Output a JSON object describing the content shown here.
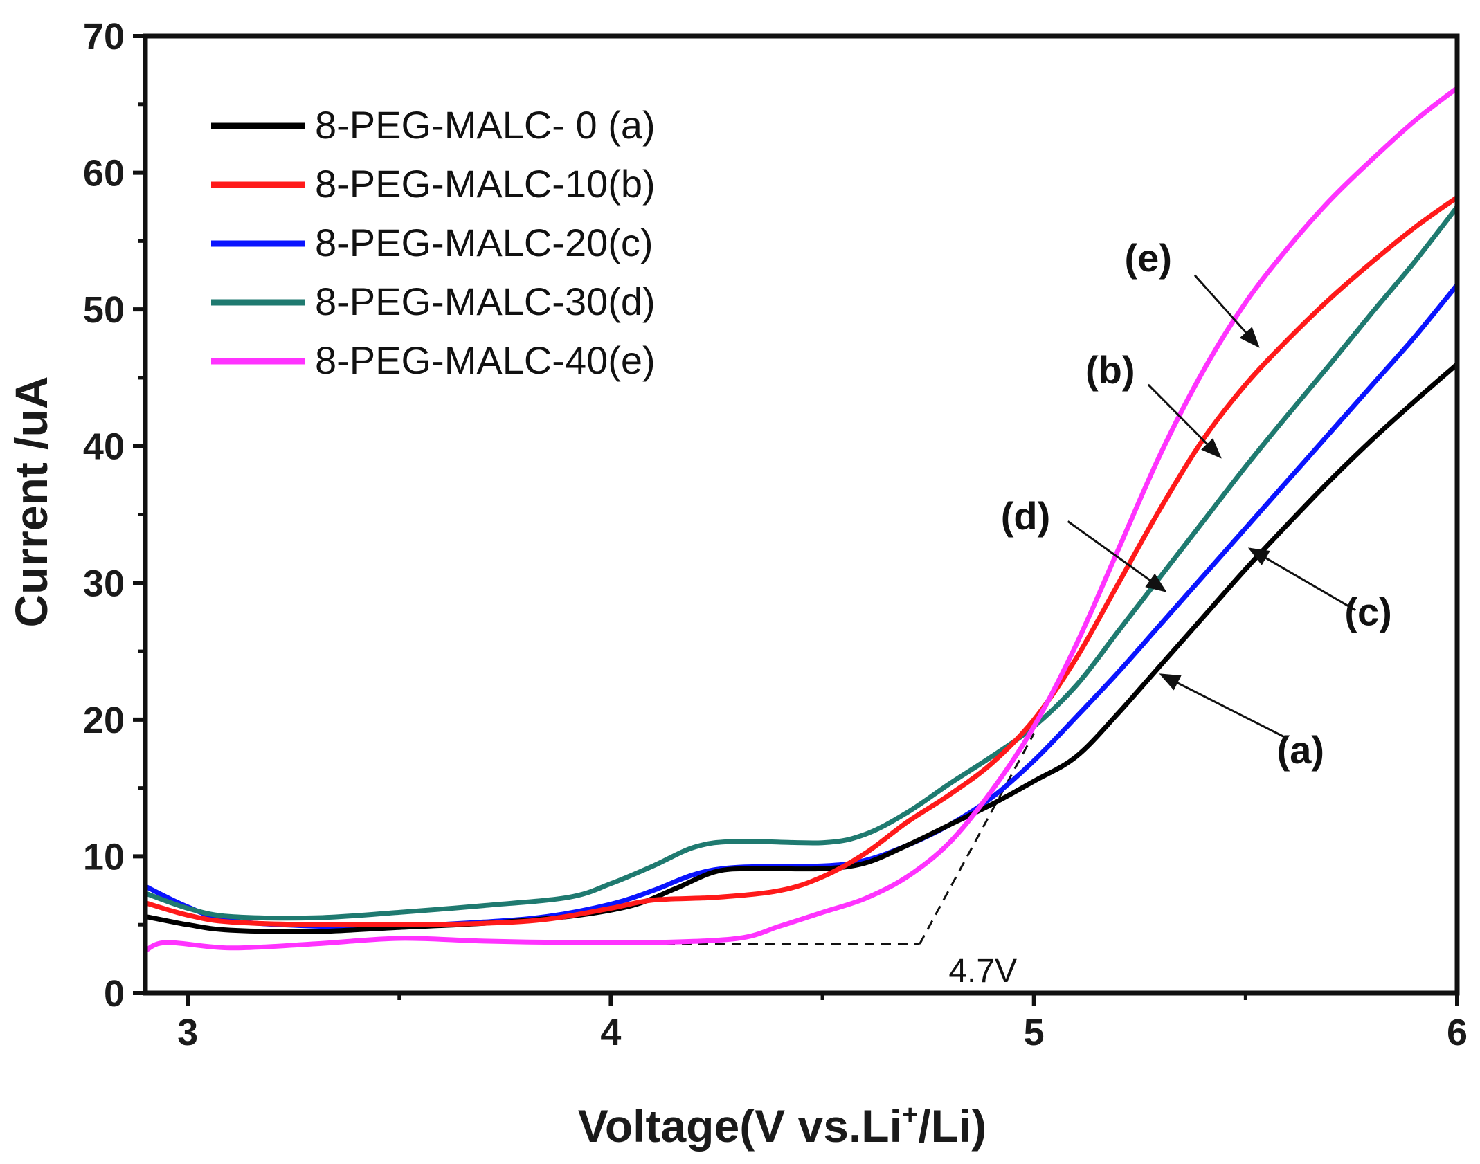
{
  "chart_data": {
    "type": "line",
    "title": "",
    "xlabel_main": "Voltage(V vs.Li",
    "xlabel_sup": "+",
    "xlabel_end": "/Li)",
    "ylabel": "Current /uA",
    "xlim": [
      2.9,
      6.0
    ],
    "ylim": [
      0,
      70
    ],
    "xticks": [
      3,
      4,
      5,
      6
    ],
    "yticks": [
      0,
      10,
      20,
      30,
      40,
      50,
      60,
      70
    ],
    "legend_position": "top-left",
    "series": [
      {
        "name": "8-PEG-MALC- 0 (a)",
        "tag": "(a)",
        "color": "#000000",
        "points": [
          [
            2.9,
            5.6
          ],
          [
            3.0,
            5.0
          ],
          [
            3.1,
            4.6
          ],
          [
            3.3,
            4.5
          ],
          [
            3.5,
            4.8
          ],
          [
            3.7,
            5.1
          ],
          [
            3.9,
            5.6
          ],
          [
            4.05,
            6.4
          ],
          [
            4.15,
            7.6
          ],
          [
            4.25,
            8.9
          ],
          [
            4.35,
            9.1
          ],
          [
            4.5,
            9.1
          ],
          [
            4.6,
            9.5
          ],
          [
            4.7,
            10.8
          ],
          [
            4.8,
            12.3
          ],
          [
            4.9,
            13.8
          ],
          [
            5.0,
            15.5
          ],
          [
            5.1,
            17.3
          ],
          [
            5.2,
            20.5
          ],
          [
            5.3,
            24.0
          ],
          [
            5.4,
            27.5
          ],
          [
            5.5,
            31.0
          ],
          [
            5.6,
            34.3
          ],
          [
            5.7,
            37.5
          ],
          [
            5.8,
            40.5
          ],
          [
            5.9,
            43.3
          ],
          [
            6.0,
            46.0
          ]
        ]
      },
      {
        "name": "8-PEG-MALC-10(b)",
        "tag": "(b)",
        "color": "#ff1a1a",
        "points": [
          [
            2.9,
            6.6
          ],
          [
            3.0,
            5.7
          ],
          [
            3.1,
            5.2
          ],
          [
            3.3,
            5.0
          ],
          [
            3.5,
            5.0
          ],
          [
            3.7,
            5.1
          ],
          [
            3.85,
            5.4
          ],
          [
            4.0,
            6.2
          ],
          [
            4.1,
            6.8
          ],
          [
            4.25,
            7.0
          ],
          [
            4.4,
            7.5
          ],
          [
            4.5,
            8.5
          ],
          [
            4.6,
            10.2
          ],
          [
            4.7,
            12.5
          ],
          [
            4.8,
            14.5
          ],
          [
            4.9,
            16.8
          ],
          [
            5.0,
            20.0
          ],
          [
            5.1,
            24.5
          ],
          [
            5.2,
            30.0
          ],
          [
            5.3,
            35.5
          ],
          [
            5.4,
            40.5
          ],
          [
            5.5,
            44.5
          ],
          [
            5.6,
            47.8
          ],
          [
            5.7,
            50.8
          ],
          [
            5.8,
            53.5
          ],
          [
            5.9,
            56.0
          ],
          [
            6.0,
            58.2
          ]
        ]
      },
      {
        "name": "8-PEG-MALC-20(c)",
        "tag": "(c)",
        "color": "#0a14ff",
        "points": [
          [
            2.9,
            7.8
          ],
          [
            3.0,
            6.3
          ],
          [
            3.1,
            5.3
          ],
          [
            3.3,
            4.9
          ],
          [
            3.5,
            4.9
          ],
          [
            3.7,
            5.2
          ],
          [
            3.85,
            5.6
          ],
          [
            4.0,
            6.5
          ],
          [
            4.1,
            7.5
          ],
          [
            4.2,
            8.7
          ],
          [
            4.3,
            9.2
          ],
          [
            4.5,
            9.3
          ],
          [
            4.6,
            9.7
          ],
          [
            4.7,
            10.8
          ],
          [
            4.8,
            12.3
          ],
          [
            4.9,
            14.3
          ],
          [
            5.0,
            17.0
          ],
          [
            5.1,
            20.2
          ],
          [
            5.2,
            23.5
          ],
          [
            5.3,
            27.0
          ],
          [
            5.4,
            30.5
          ],
          [
            5.5,
            34.0
          ],
          [
            5.6,
            37.5
          ],
          [
            5.7,
            41.0
          ],
          [
            5.8,
            44.5
          ],
          [
            5.9,
            48.0
          ],
          [
            6.0,
            51.8
          ]
        ]
      },
      {
        "name": "8-PEG-MALC-30(d)",
        "tag": "(d)",
        "color": "#1f7a70",
        "points": [
          [
            2.9,
            7.3
          ],
          [
            3.0,
            6.2
          ],
          [
            3.1,
            5.6
          ],
          [
            3.3,
            5.5
          ],
          [
            3.5,
            5.9
          ],
          [
            3.7,
            6.4
          ],
          [
            3.9,
            7.0
          ],
          [
            4.0,
            8.0
          ],
          [
            4.1,
            9.3
          ],
          [
            4.2,
            10.7
          ],
          [
            4.3,
            11.1
          ],
          [
            4.5,
            11.0
          ],
          [
            4.6,
            11.6
          ],
          [
            4.7,
            13.2
          ],
          [
            4.8,
            15.3
          ],
          [
            4.9,
            17.3
          ],
          [
            5.0,
            19.5
          ],
          [
            5.1,
            22.5
          ],
          [
            5.2,
            26.5
          ],
          [
            5.3,
            30.5
          ],
          [
            5.4,
            34.5
          ],
          [
            5.5,
            38.5
          ],
          [
            5.6,
            42.3
          ],
          [
            5.7,
            46.0
          ],
          [
            5.8,
            49.8
          ],
          [
            5.9,
            53.5
          ],
          [
            6.0,
            57.5
          ]
        ]
      },
      {
        "name": "8-PEG-MALC-40(e)",
        "tag": "(e)",
        "color": "#ff33ff",
        "points": [
          [
            2.9,
            3.1
          ],
          [
            2.95,
            3.7
          ],
          [
            3.1,
            3.3
          ],
          [
            3.3,
            3.6
          ],
          [
            3.5,
            4.0
          ],
          [
            3.7,
            3.8
          ],
          [
            3.9,
            3.7
          ],
          [
            4.1,
            3.7
          ],
          [
            4.3,
            4.0
          ],
          [
            4.4,
            4.9
          ],
          [
            4.5,
            5.9
          ],
          [
            4.6,
            6.9
          ],
          [
            4.7,
            8.5
          ],
          [
            4.8,
            11.0
          ],
          [
            4.9,
            14.8
          ],
          [
            5.0,
            19.5
          ],
          [
            5.1,
            25.5
          ],
          [
            5.2,
            32.5
          ],
          [
            5.3,
            39.5
          ],
          [
            5.4,
            45.5
          ],
          [
            5.5,
            50.5
          ],
          [
            5.6,
            54.5
          ],
          [
            5.7,
            58.0
          ],
          [
            5.8,
            61.0
          ],
          [
            5.9,
            63.8
          ],
          [
            6.0,
            66.2
          ]
        ]
      }
    ],
    "annotations": [
      {
        "label": "(e)",
        "text_x": 5.27,
        "text_y": 52.8,
        "arrow_from": [
          5.38,
          52.5
        ],
        "arrow_to": [
          5.53,
          47.3
        ]
      },
      {
        "label": "(b)",
        "text_x": 5.18,
        "text_y": 44.6,
        "arrow_from": [
          5.27,
          44.5
        ],
        "arrow_to": [
          5.44,
          39.2
        ]
      },
      {
        "label": "(d)",
        "text_x": 4.98,
        "text_y": 33.9,
        "arrow_from": [
          5.08,
          34.5
        ],
        "arrow_to": [
          5.31,
          29.4
        ]
      },
      {
        "label": "(c)",
        "text_x": 5.79,
        "text_y": 26.9,
        "arrow_from": [
          5.76,
          28.0
        ],
        "arrow_to": [
          5.51,
          32.5
        ]
      },
      {
        "label": "(a)",
        "text_x": 5.63,
        "text_y": 16.8,
        "arrow_from": [
          5.6,
          18.6
        ],
        "arrow_to": [
          5.3,
          23.3
        ]
      }
    ],
    "onset": {
      "label": "4.7V",
      "value": 4.7,
      "baseline_y": 3.6,
      "tangent_from": [
        4.73,
        3.6
      ],
      "tangent_to": [
        5.0,
        19.0
      ],
      "baseline_from": 4.05
    }
  }
}
